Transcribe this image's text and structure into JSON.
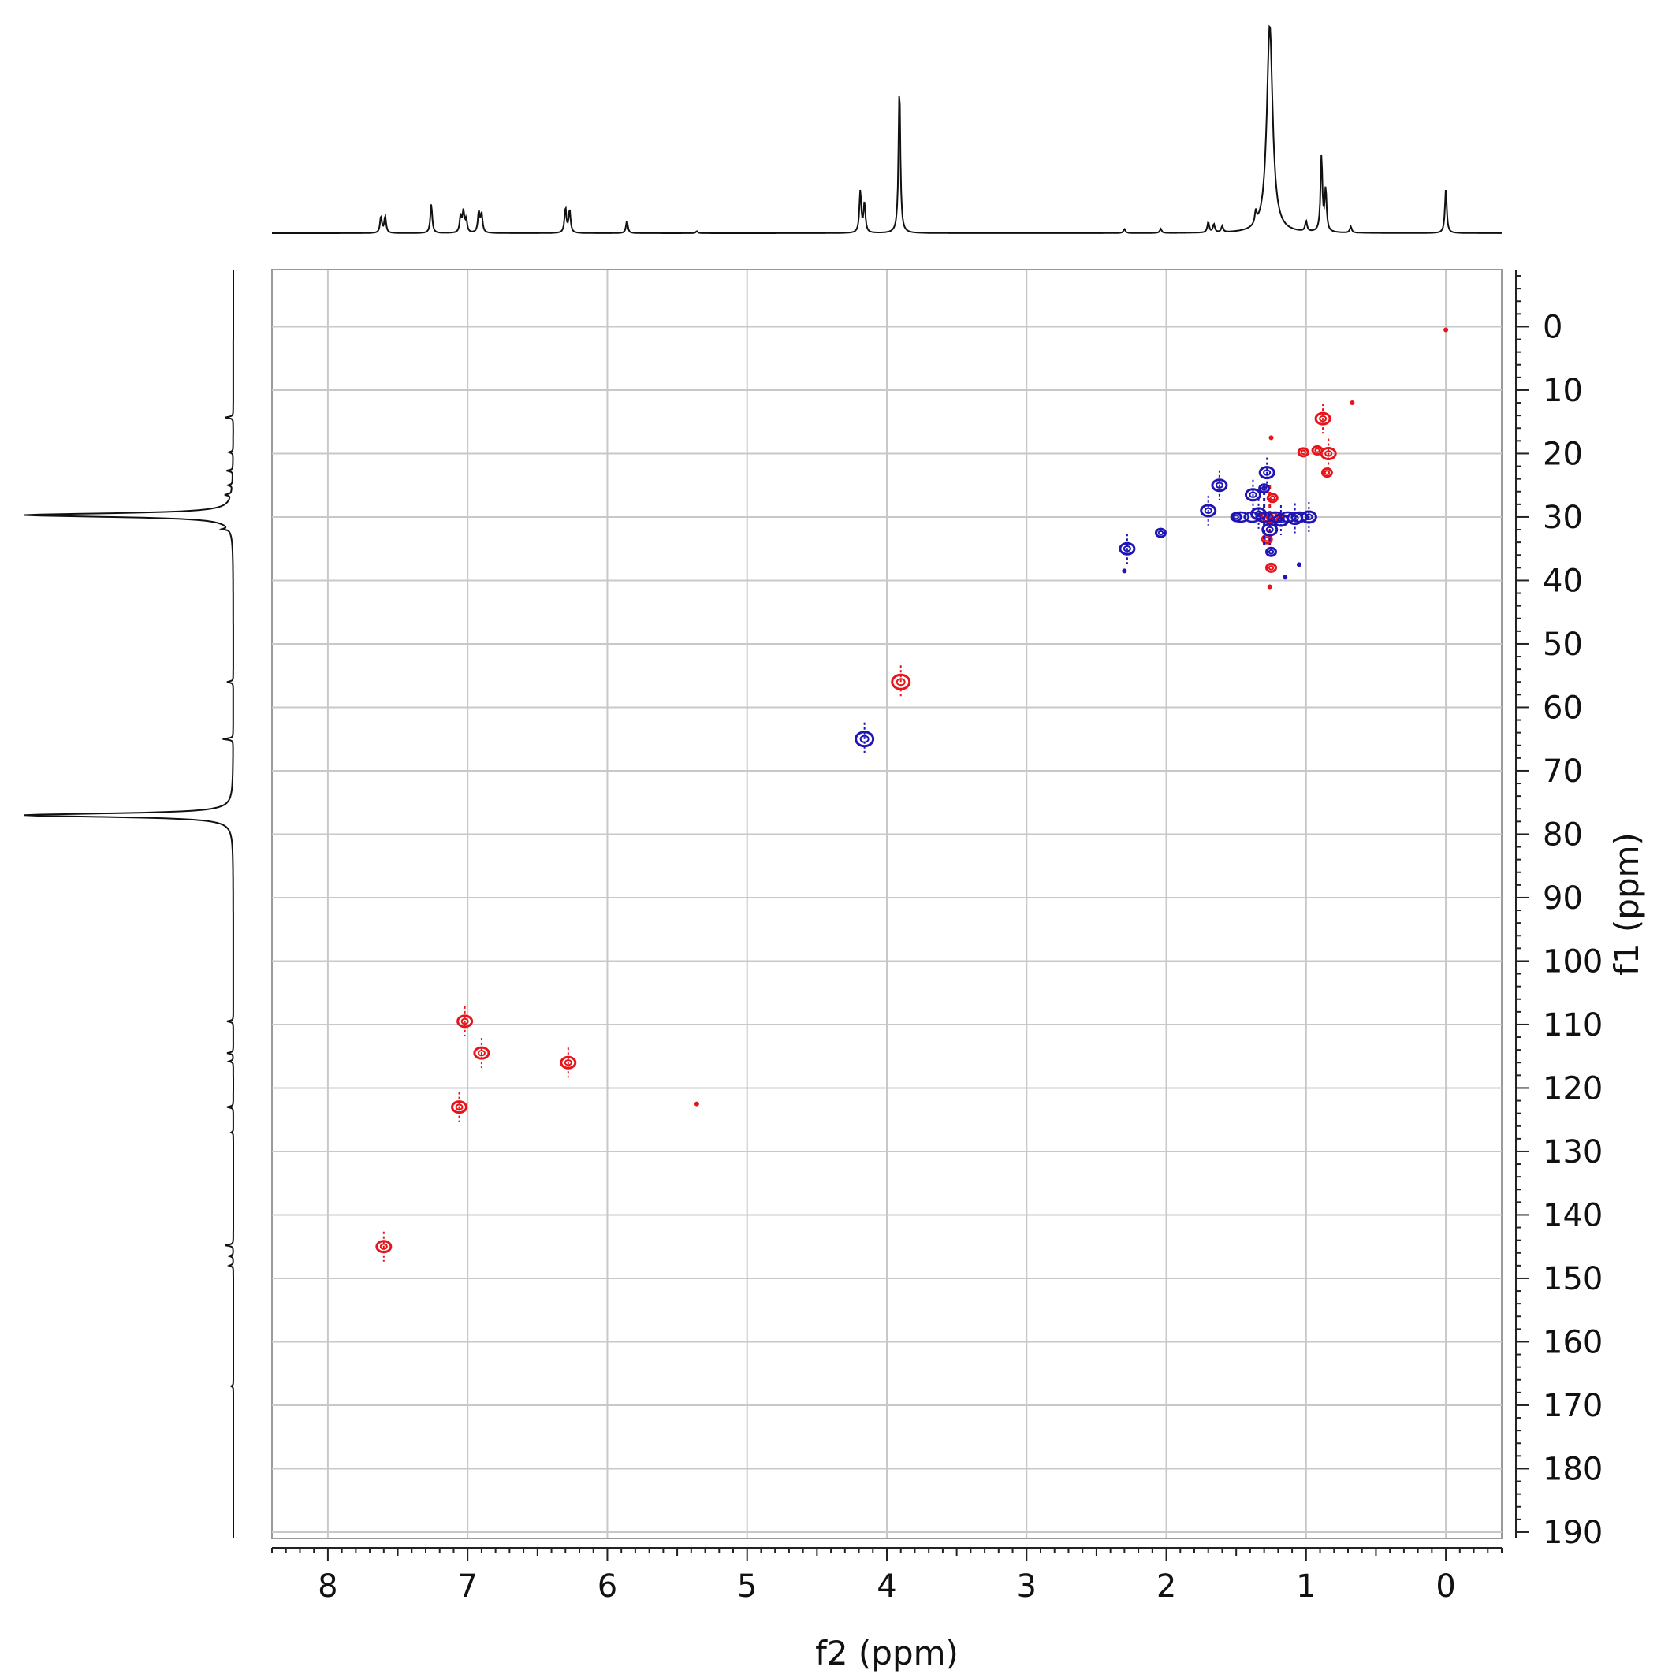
{
  "chart_data": {
    "type": "heatmap",
    "subtype": "2D NMR HSQC contour plot with projections",
    "xlabel": "f2 (ppm)",
    "ylabel": "f1 (ppm)",
    "xlim": [
      8.4,
      -0.4
    ],
    "ylim": [
      -9,
      191
    ],
    "x_ticks": [
      8,
      7,
      6,
      5,
      4,
      3,
      2,
      1,
      0
    ],
    "y_ticks": [
      0,
      10,
      20,
      30,
      40,
      50,
      60,
      70,
      80,
      90,
      100,
      110,
      120,
      130,
      140,
      150,
      160,
      170,
      180,
      190
    ],
    "x_reversed": true,
    "y_reversed": true,
    "grid": true,
    "series": [
      {
        "phase": "positive",
        "color": "#e8141a",
        "points": [
          {
            "x": 7.6,
            "y": 145,
            "size": "medium"
          },
          {
            "x": 7.02,
            "y": 109.5,
            "size": "medium"
          },
          {
            "x": 6.9,
            "y": 114.5,
            "size": "medium"
          },
          {
            "x": 7.06,
            "y": 123,
            "size": "medium"
          },
          {
            "x": 6.28,
            "y": 116,
            "size": "medium"
          },
          {
            "x": 5.36,
            "y": 122.5,
            "size": "dot"
          },
          {
            "x": 3.9,
            "y": 56,
            "size": "large"
          },
          {
            "x": 0.88,
            "y": 14.5,
            "size": "medium"
          },
          {
            "x": 0.84,
            "y": 20,
            "size": "medium"
          },
          {
            "x": 0.85,
            "y": 23,
            "size": "small"
          },
          {
            "x": 0.92,
            "y": 19.5,
            "size": "small"
          },
          {
            "x": 1.02,
            "y": 19.8,
            "size": "small"
          },
          {
            "x": 0.67,
            "y": 12,
            "size": "dot"
          },
          {
            "x": 1.26,
            "y": 30,
            "size": "cluster"
          },
          {
            "x": 1.24,
            "y": 27,
            "size": "small"
          },
          {
            "x": 1.28,
            "y": 33.5,
            "size": "small"
          },
          {
            "x": 1.25,
            "y": 38,
            "size": "small"
          },
          {
            "x": 1.26,
            "y": 41,
            "size": "dot"
          },
          {
            "x": 1.25,
            "y": 17.5,
            "size": "dot"
          },
          {
            "x": 0.0,
            "y": 0.5,
            "size": "dot"
          }
        ]
      },
      {
        "phase": "negative",
        "color": "#1f14b4",
        "points": [
          {
            "x": 4.16,
            "y": 65,
            "size": "large"
          },
          {
            "x": 2.28,
            "y": 35,
            "size": "medium"
          },
          {
            "x": 2.3,
            "y": 38.5,
            "size": "dot"
          },
          {
            "x": 2.04,
            "y": 32.5,
            "size": "small"
          },
          {
            "x": 1.7,
            "y": 29,
            "size": "medium"
          },
          {
            "x": 1.62,
            "y": 25,
            "size": "medium"
          },
          {
            "x": 1.5,
            "y": 30,
            "size": "small"
          },
          {
            "x": 1.38,
            "y": 26.5,
            "size": "medium"
          },
          {
            "x": 1.34,
            "y": 29.5,
            "size": "medium"
          },
          {
            "x": 1.28,
            "y": 23,
            "size": "medium"
          },
          {
            "x": 1.3,
            "y": 25.5,
            "size": "small"
          },
          {
            "x": 1.3,
            "y": 30,
            "size": "cluster"
          },
          {
            "x": 1.26,
            "y": 32,
            "size": "medium"
          },
          {
            "x": 1.25,
            "y": 35.5,
            "size": "small"
          },
          {
            "x": 1.18,
            "y": 30.5,
            "size": "medium"
          },
          {
            "x": 1.08,
            "y": 30.2,
            "size": "medium"
          },
          {
            "x": 0.98,
            "y": 30,
            "size": "medium"
          },
          {
            "x": 1.15,
            "y": 39.5,
            "size": "dot"
          },
          {
            "x": 1.05,
            "y": 37.5,
            "size": "dot"
          }
        ]
      }
    ],
    "projection_f2": {
      "peaks": [
        {
          "ppm": 7.62,
          "h": 0.08
        },
        {
          "ppm": 7.59,
          "h": 0.08
        },
        {
          "ppm": 7.26,
          "h": 0.14
        },
        {
          "ppm": 7.05,
          "h": 0.08
        },
        {
          "ppm": 7.03,
          "h": 0.1
        },
        {
          "ppm": 7.01,
          "h": 0.06
        },
        {
          "ppm": 6.92,
          "h": 0.1
        },
        {
          "ppm": 6.9,
          "h": 0.09
        },
        {
          "ppm": 6.3,
          "h": 0.12
        },
        {
          "ppm": 6.27,
          "h": 0.11
        },
        {
          "ppm": 5.86,
          "h": 0.06
        },
        {
          "ppm": 5.36,
          "h": 0.01
        },
        {
          "ppm": 4.19,
          "h": 0.2
        },
        {
          "ppm": 4.16,
          "h": 0.14
        },
        {
          "ppm": 3.91,
          "h": 0.7
        },
        {
          "ppm": 2.3,
          "h": 0.02
        },
        {
          "ppm": 2.04,
          "h": 0.02
        },
        {
          "ppm": 1.7,
          "h": 0.05
        },
        {
          "ppm": 1.66,
          "h": 0.04
        },
        {
          "ppm": 1.6,
          "h": 0.03
        },
        {
          "ppm": 1.36,
          "h": 0.06
        },
        {
          "ppm": 1.26,
          "h": 1.0
        },
        {
          "ppm": 1.0,
          "h": 0.05
        },
        {
          "ppm": 0.89,
          "h": 0.36
        },
        {
          "ppm": 0.86,
          "h": 0.2
        },
        {
          "ppm": 0.68,
          "h": 0.03
        },
        {
          "ppm": 0.0,
          "h": 0.21
        }
      ]
    },
    "projection_f1": {
      "peaks": [
        {
          "ppm": 14.3,
          "h": 0.04
        },
        {
          "ppm": 19.8,
          "h": 0.02
        },
        {
          "ppm": 22.7,
          "h": 0.03
        },
        {
          "ppm": 25.0,
          "h": 0.02
        },
        {
          "ppm": 26.5,
          "h": 0.03
        },
        {
          "ppm": 29.7,
          "h": 1.0
        },
        {
          "ppm": 31.9,
          "h": 0.03
        },
        {
          "ppm": 56.0,
          "h": 0.03
        },
        {
          "ppm": 65.0,
          "h": 0.05
        },
        {
          "ppm": 77.0,
          "h": 1.0
        },
        {
          "ppm": 109.5,
          "h": 0.03
        },
        {
          "ppm": 114.5,
          "h": 0.03
        },
        {
          "ppm": 115.8,
          "h": 0.02
        },
        {
          "ppm": 123.0,
          "h": 0.03
        },
        {
          "ppm": 127.0,
          "h": 0.01
        },
        {
          "ppm": 144.8,
          "h": 0.04
        },
        {
          "ppm": 146.5,
          "h": 0.02
        },
        {
          "ppm": 148.0,
          "h": 0.02
        },
        {
          "ppm": 167.0,
          "h": 0.01
        }
      ]
    }
  }
}
